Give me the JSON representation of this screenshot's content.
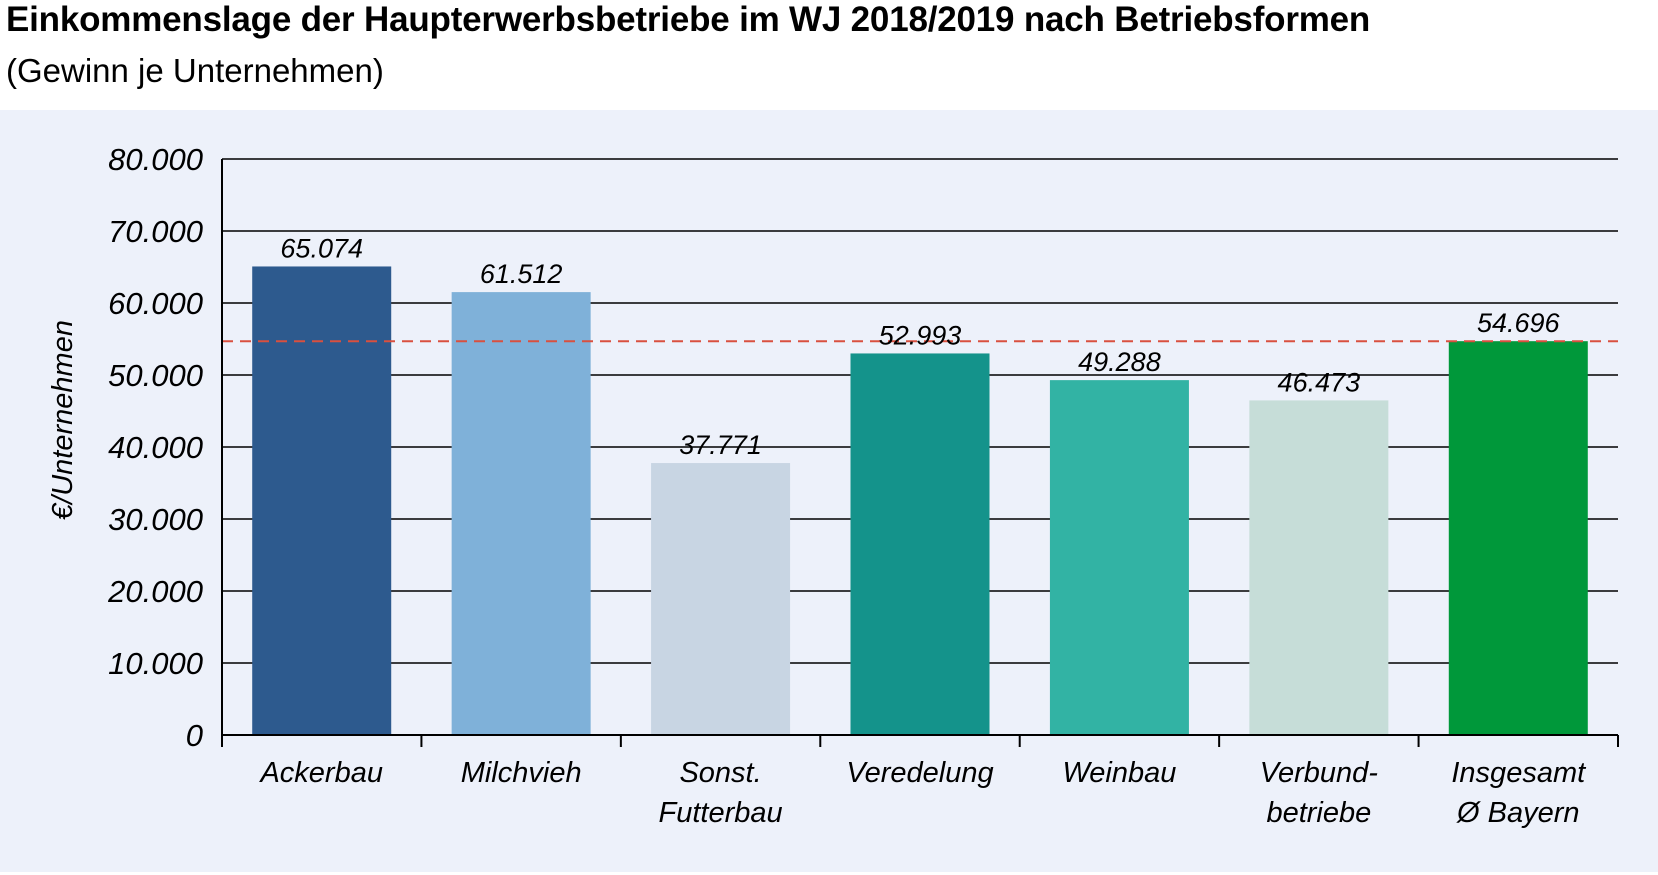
{
  "chart_data": {
    "type": "bar",
    "title": "Einkommenslage der Haupterwerbsbetriebe im WJ 2018/2019 nach Betriebsformen",
    "subtitle": "(Gewinn je Unternehmen)",
    "ylabel": "€/Unternehmen",
    "xlabel": "",
    "ylim": [
      0,
      80000
    ],
    "yticks": [
      0,
      10000,
      20000,
      30000,
      40000,
      50000,
      60000,
      70000,
      80000
    ],
    "ytick_labels": [
      "0",
      "10.000",
      "20.000",
      "30.000",
      "40.000",
      "50.000",
      "60.000",
      "70.000",
      "80.000"
    ],
    "grid": true,
    "categories": [
      [
        "Ackerbau"
      ],
      [
        "Milchvieh"
      ],
      [
        "Sonst.",
        "Futterbau"
      ],
      [
        "Veredelung"
      ],
      [
        "Weinbau"
      ],
      [
        "Verbund-",
        "betriebe"
      ],
      [
        "Insgesamt",
        "Ø Bayern"
      ]
    ],
    "values": [
      65074,
      61512,
      37771,
      52993,
      49288,
      46473,
      54696
    ],
    "value_labels": [
      "65.074",
      "61.512",
      "37.771",
      "52.993",
      "49.288",
      "46.473",
      "54.696"
    ],
    "colors": [
      "#2d5a8e",
      "#7fb1d9",
      "#c8d5e3",
      "#14938b",
      "#32b3a4",
      "#c6ddd8",
      "#00983a"
    ],
    "reference_line": {
      "value": 54696,
      "style": "dashed",
      "color": "#d9503f"
    },
    "background": "#edf1fa"
  }
}
